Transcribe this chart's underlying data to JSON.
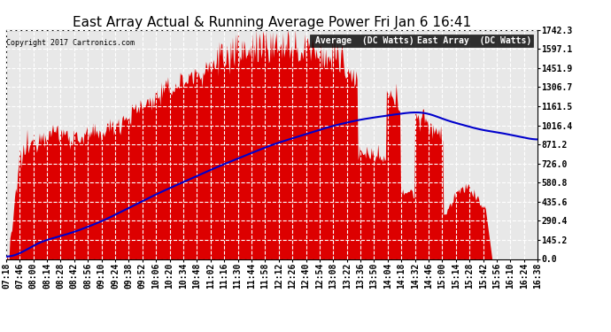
{
  "title": "East Array Actual & Running Average Power Fri Jan 6 16:41",
  "copyright": "Copyright 2017 Cartronics.com",
  "ylabel_values": [
    0.0,
    145.2,
    290.4,
    435.6,
    580.8,
    726.0,
    871.2,
    1016.4,
    1161.5,
    1306.7,
    1451.9,
    1597.1,
    1742.3
  ],
  "ymax": 1742.3,
  "ymin": 0.0,
  "legend_avg_label": "Average  (DC Watts)",
  "legend_east_label": "East Array  (DC Watts)",
  "legend_avg_bg": "#0000cc",
  "legend_east_bg": "#cc0000",
  "background_color": "#ffffff",
  "plot_bg_color": "#ffffff",
  "grid_color": "#bbbbbb",
  "fill_color": "#dd0000",
  "line_color": "#0000cc",
  "title_fontsize": 11,
  "tick_fontsize": 7,
  "x_tick_labels": [
    "07:18",
    "07:46",
    "08:00",
    "08:14",
    "08:28",
    "08:42",
    "08:56",
    "09:10",
    "09:24",
    "09:38",
    "09:52",
    "10:06",
    "10:20",
    "10:34",
    "10:48",
    "11:02",
    "11:16",
    "11:30",
    "11:44",
    "11:58",
    "12:12",
    "12:26",
    "12:40",
    "12:54",
    "13:08",
    "13:22",
    "13:36",
    "13:50",
    "14:04",
    "14:18",
    "14:32",
    "14:46",
    "15:00",
    "15:14",
    "15:28",
    "15:42",
    "15:56",
    "16:10",
    "16:24",
    "16:38"
  ]
}
